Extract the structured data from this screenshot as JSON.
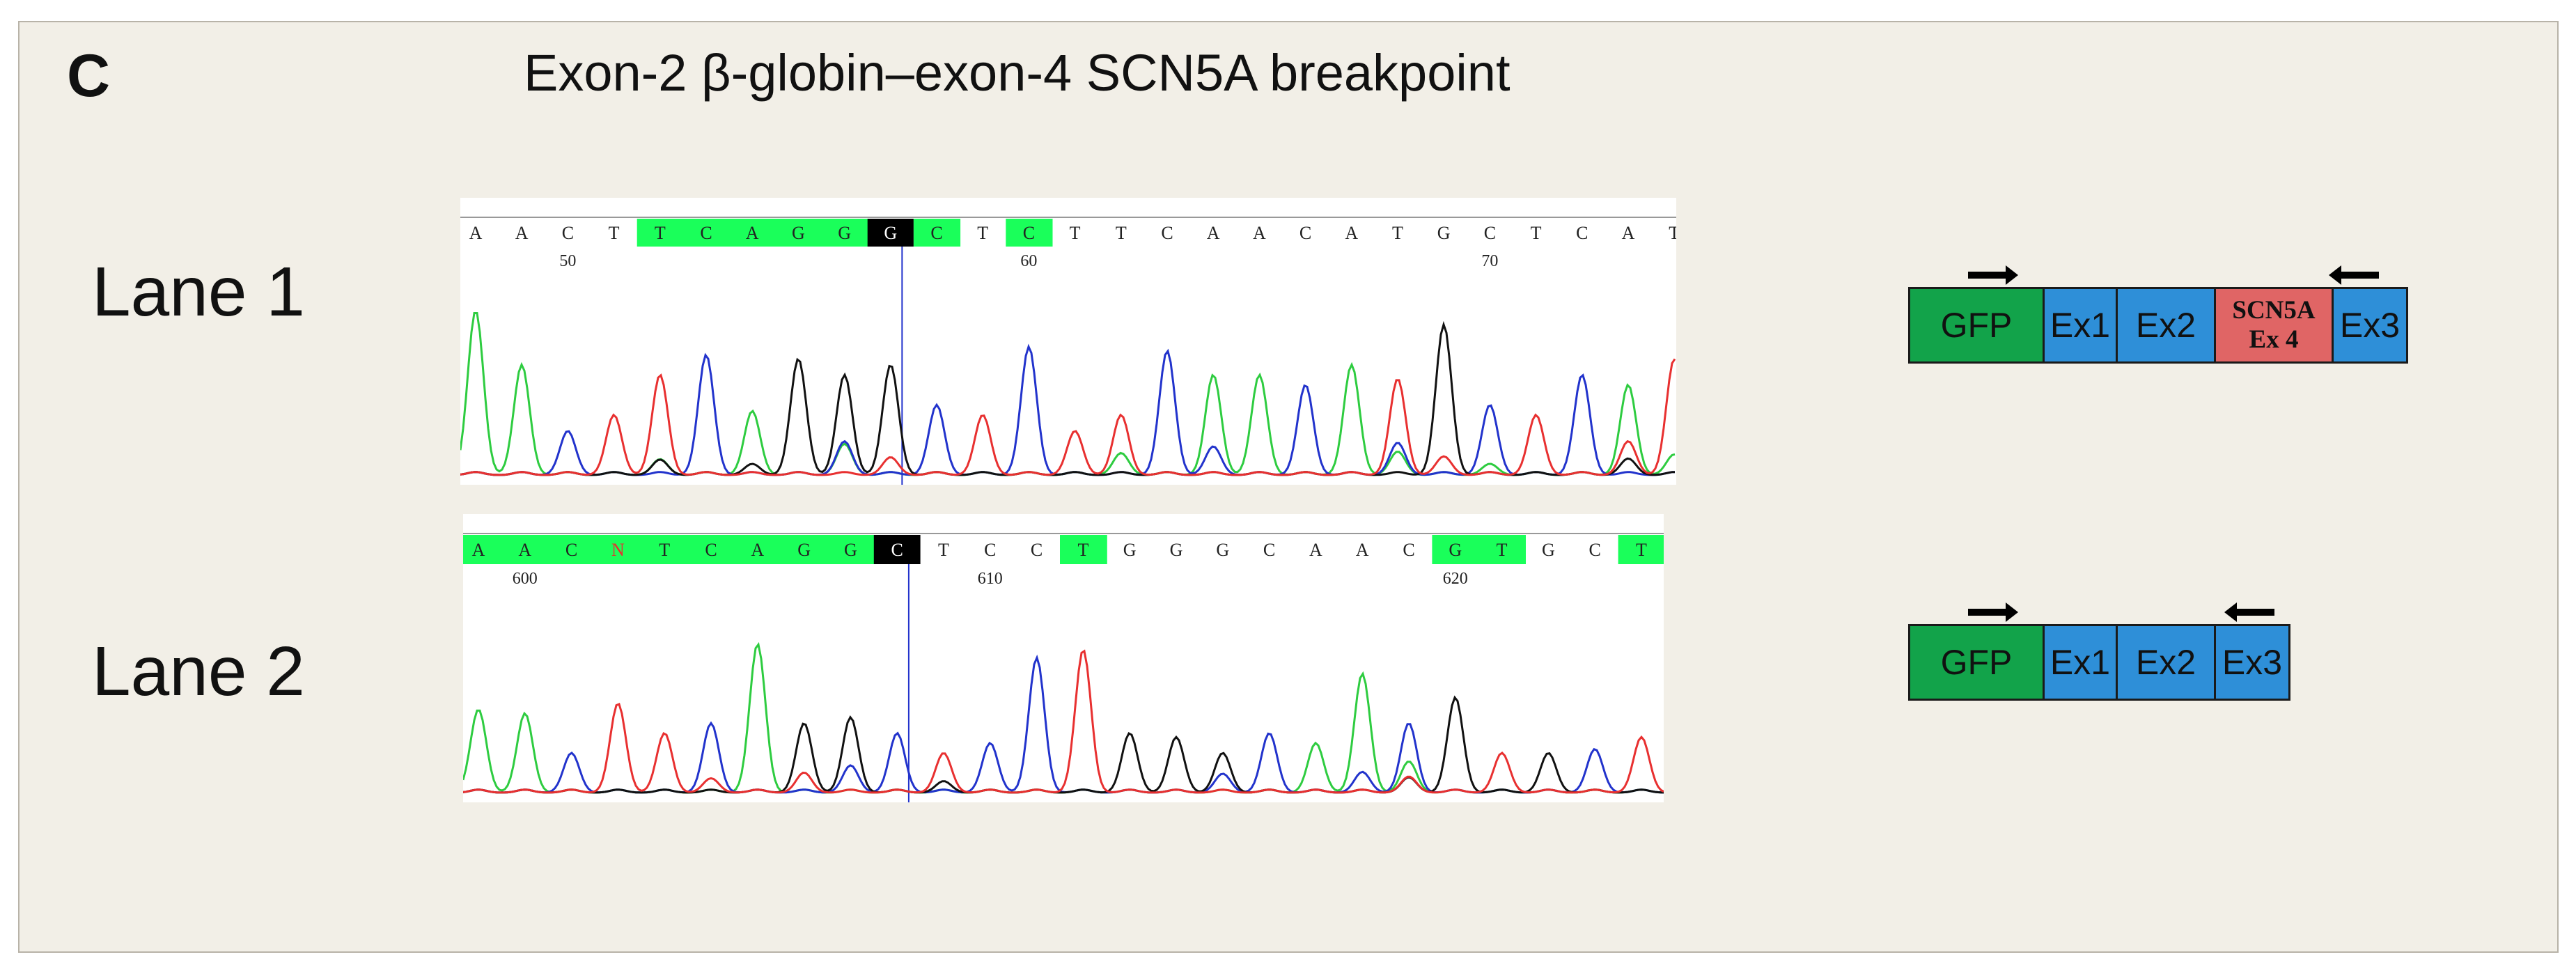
{
  "panel_letter": "C",
  "title": "Exon-2 β-globin–exon-4 SCN5A breakpoint",
  "colors": {
    "A": "#2ecc40",
    "C": "#2233cc",
    "G": "#111111",
    "T": "#e83030",
    "highlight": "#1aff5a",
    "cursor_bg": "#000000",
    "gfp": "#12a34a",
    "exon": "#2e8fd8",
    "scn5a": "#e06565"
  },
  "lanes": [
    {
      "label": "Lane 1",
      "bases": [
        "A",
        "A",
        "C",
        "T",
        "T",
        "C",
        "A",
        "G",
        "G",
        "G",
        "C",
        "T",
        "C",
        "T",
        "T",
        "C",
        "A",
        "A",
        "C",
        "A",
        "T",
        "G",
        "C",
        "T",
        "C",
        "A",
        "T"
      ],
      "highlighted": [
        4,
        5,
        6,
        7,
        8,
        10,
        12
      ],
      "cursor_index": 9,
      "position_ticks": [
        {
          "base_index": 2,
          "label": "50"
        },
        {
          "base_index": 12,
          "label": "60"
        },
        {
          "base_index": 22,
          "label": "70"
        }
      ],
      "construct": [
        {
          "label": "GFP",
          "kind": "gfp"
        },
        {
          "label": "Ex1",
          "kind": "exon"
        },
        {
          "label": "Ex2",
          "kind": "exon"
        },
        {
          "label": "SCN5A",
          "label2": "Ex 4",
          "kind": "scn5a"
        },
        {
          "label": "Ex3",
          "kind": "exon"
        }
      ]
    },
    {
      "label": "Lane 2",
      "bases": [
        "A",
        "A",
        "C",
        "N",
        "T",
        "C",
        "A",
        "G",
        "G",
        "C",
        "T",
        "C",
        "C",
        "T",
        "G",
        "G",
        "G",
        "C",
        "A",
        "A",
        "C",
        "G",
        "T",
        "G",
        "C",
        "T"
      ],
      "highlighted": [
        0,
        1,
        2,
        3,
        4,
        5,
        6,
        7,
        8,
        13,
        21,
        22,
        25
      ],
      "cursor_index": 9,
      "position_ticks": [
        {
          "base_index": 1,
          "label": "600"
        },
        {
          "base_index": 11,
          "label": "610"
        },
        {
          "base_index": 21,
          "label": "620"
        }
      ],
      "construct": [
        {
          "label": "GFP",
          "kind": "gfp"
        },
        {
          "label": "Ex1",
          "kind": "exon"
        },
        {
          "label": "Ex2",
          "kind": "exon"
        },
        {
          "label": "Ex3",
          "kind": "exon"
        }
      ]
    }
  ]
}
